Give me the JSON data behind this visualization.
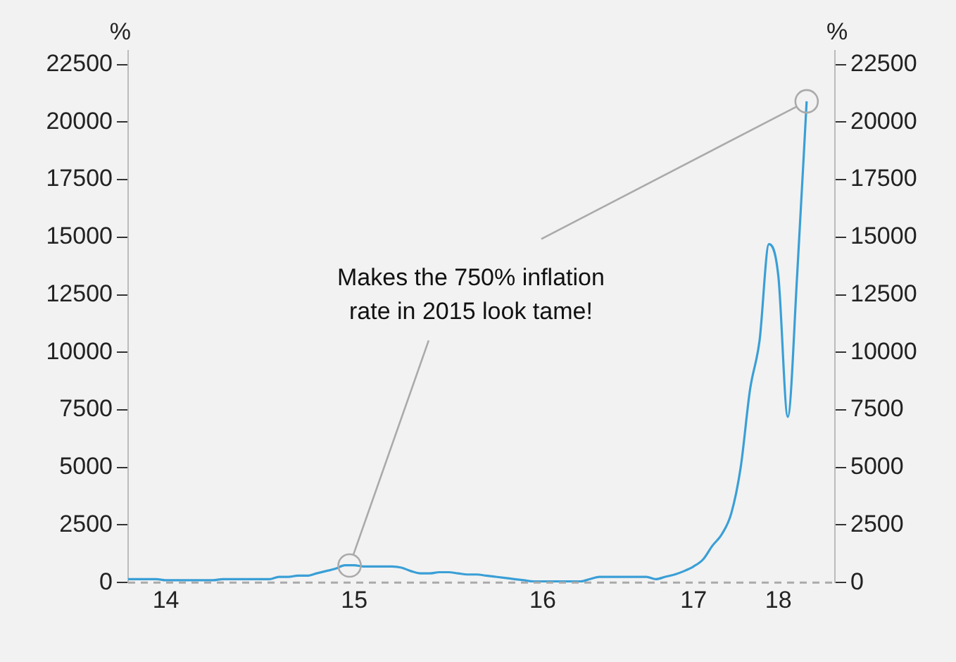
{
  "chart_data": {
    "type": "line",
    "categories": [
      null,
      null,
      null,
      null,
      "14",
      null,
      null,
      null,
      null,
      null,
      null,
      null,
      null,
      null,
      null,
      null,
      null,
      null,
      null,
      null,
      null,
      null,
      null,
      null,
      "15",
      null,
      null,
      null,
      null,
      null,
      null,
      null,
      null,
      null,
      null,
      null,
      null,
      null,
      null,
      null,
      null,
      null,
      null,
      null,
      "16",
      null,
      null,
      null,
      null,
      null,
      null,
      null,
      null,
      null,
      null,
      null,
      null,
      null,
      null,
      null,
      "17",
      null,
      null,
      null,
      null,
      null,
      null,
      null,
      null,
      "18",
      null,
      null,
      null,
      null,
      null,
      null
    ],
    "series": [
      {
        "color": "#3a9fd6",
        "values": [
          150,
          150,
          150,
          150,
          100,
          100,
          100,
          100,
          100,
          100,
          150,
          150,
          150,
          150,
          150,
          150,
          250,
          250,
          300,
          300,
          400,
          500,
          600,
          750,
          750,
          700,
          700,
          700,
          700,
          650,
          500,
          400,
          400,
          450,
          450,
          400,
          350,
          350,
          300,
          250,
          200,
          150,
          100,
          50,
          50,
          50,
          50,
          50,
          50,
          150,
          250,
          250,
          250,
          250,
          250,
          250,
          150,
          250,
          350,
          500,
          700,
          1000,
          1600,
          2100,
          3000,
          5000,
          8400,
          10500,
          14700,
          13300,
          7200,
          13400,
          20900,
          null,
          null,
          null
        ]
      }
    ],
    "ylabel": "%",
    "y2label": "%",
    "ylim": [
      0,
      23100
    ],
    "yticks": [
      0,
      2500,
      5000,
      7500,
      10000,
      12500,
      15000,
      17500,
      20000,
      22500
    ],
    "y2lim": [
      0,
      23100
    ],
    "y2ticks": [
      0,
      2500,
      5000,
      7500,
      10000,
      12500,
      15000,
      17500,
      20000,
      22500
    ],
    "ref_lines": [
      {
        "axis": "y",
        "value": 0,
        "color": "#aaaaaa",
        "line_style": "dashed"
      }
    ],
    "annotations": [
      {
        "text": "Makes the 750% inflation rate in 2015 look tame!",
        "x": "15",
        "y": 740
      }
    ],
    "grid": false,
    "legend": false,
    "marker": "none",
    "line_style": "solid"
  }
}
